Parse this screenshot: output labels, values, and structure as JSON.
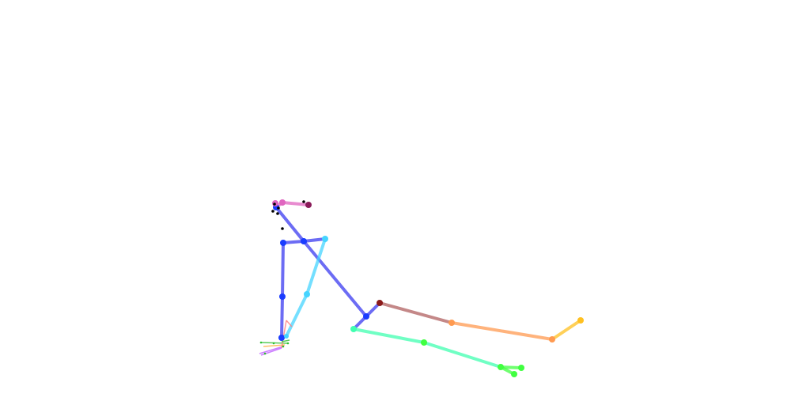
{
  "figure": {
    "type": "pose-skeleton",
    "background": "#ffffff",
    "colors": {
      "head": "#e066c0",
      "head_dark": "#8a1b5a",
      "torso": "#3b3bf0",
      "left_arm": "#45d4ff",
      "right_arm_joint": "#1a3cff",
      "hip_right": "#8b1a1a",
      "right_thigh": "#b06060",
      "right_shin": "#ff9a50",
      "right_foot": "#ffc020",
      "left_leg": "#40ffb0",
      "left_foot": "#40ff40",
      "facial_points": "#000000",
      "hand_lines": [
        "#30c030",
        "#ff8080",
        "#c060ff",
        "#ffb040"
      ]
    }
  }
}
